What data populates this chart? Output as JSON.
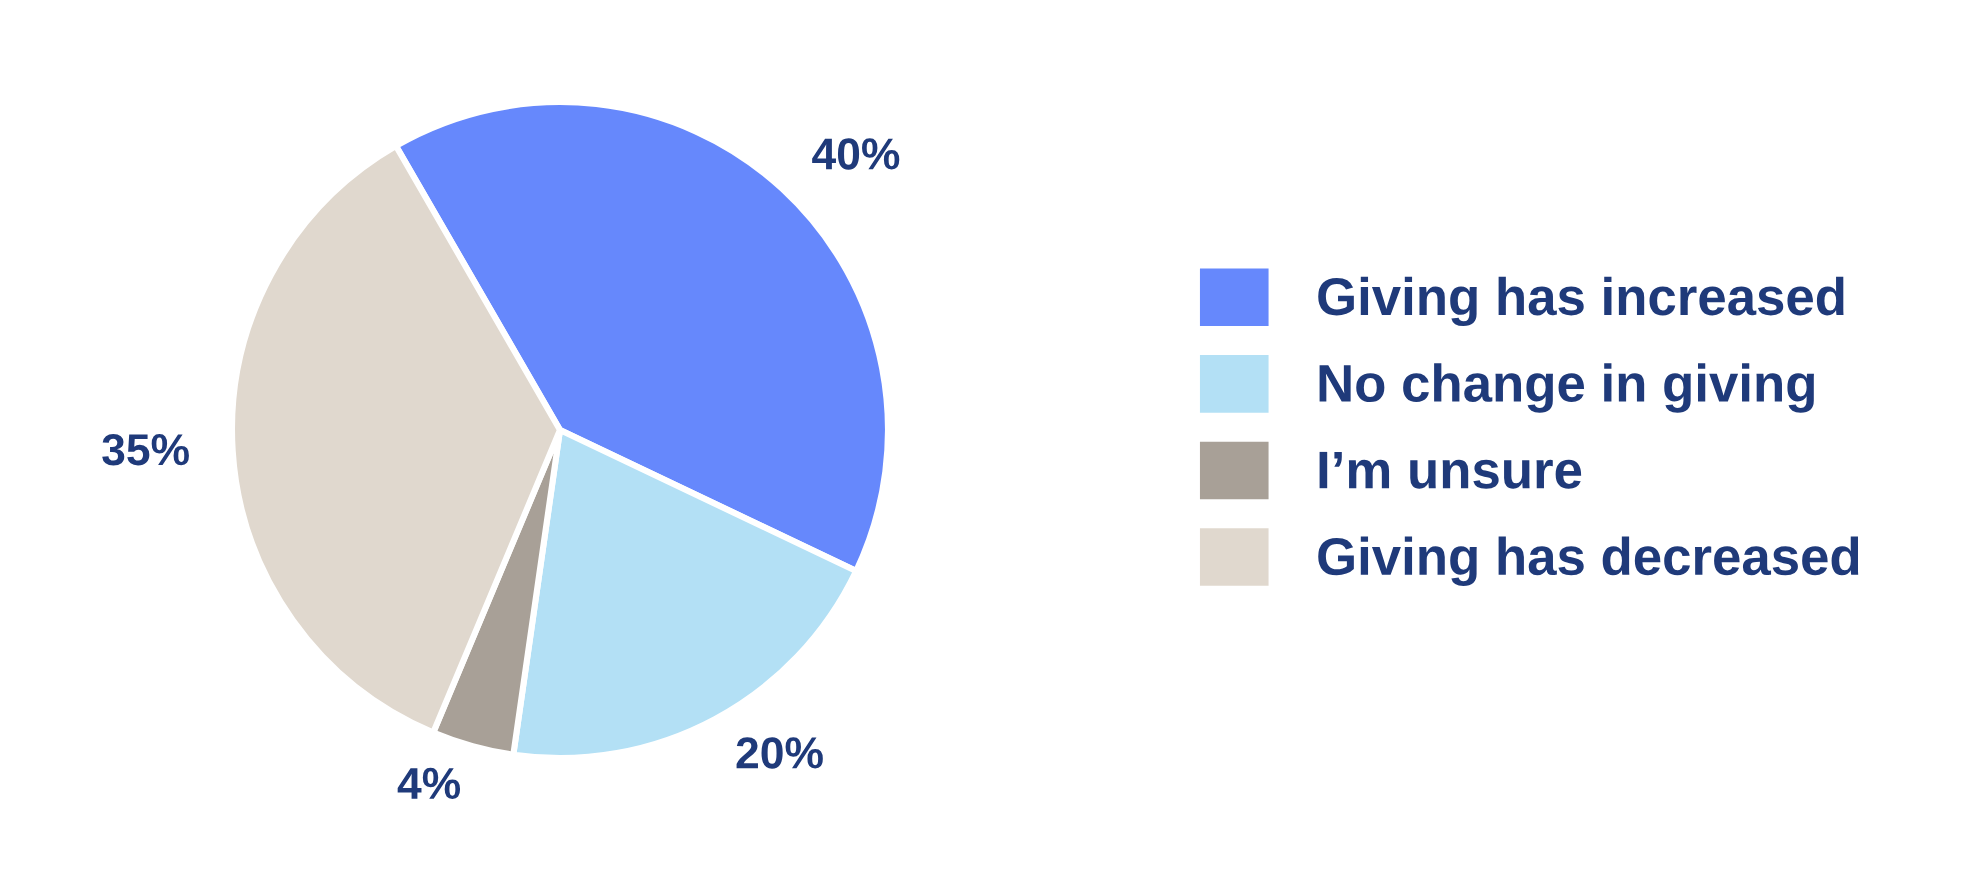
{
  "chart_data": {
    "type": "pie",
    "categories": [
      "Giving has increased",
      "No change in giving",
      "I’m unsure",
      "Giving has decreased"
    ],
    "values": [
      40,
      20,
      4,
      35
    ],
    "colors": [
      "#6688fc",
      "#b3e0f5",
      "#a8a097",
      "#e0d8ce"
    ],
    "value_labels": [
      "40%",
      "20%",
      "4%",
      "35%"
    ],
    "legend": "right"
  }
}
